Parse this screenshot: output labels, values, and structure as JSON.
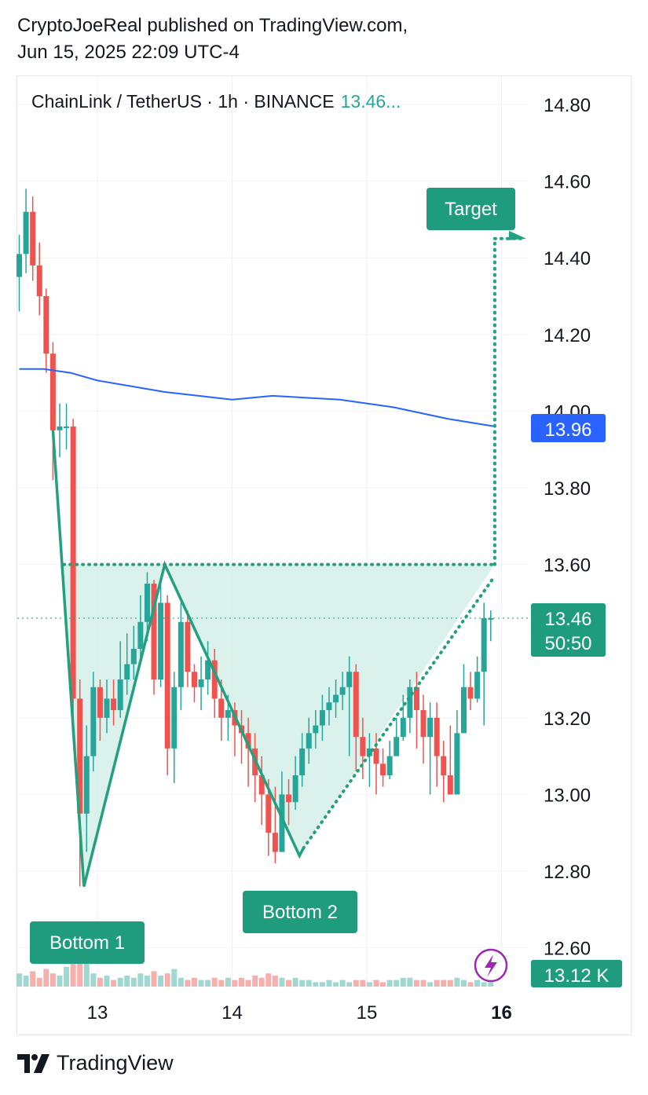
{
  "publisher": {
    "line1": "CryptoJoeReal published on TradingView.com,",
    "line2": "Jun 15, 2025 22:09 UTC-4"
  },
  "legend": {
    "symbol": "ChainLink / TetherUS · 1h · BINANCE",
    "price": "13.46..."
  },
  "footer": {
    "brand": "TradingView",
    "logo_icon": "tradingview-logo-icon"
  },
  "colors": {
    "up": "#26a69a",
    "down": "#ef5350",
    "ma": "#2962ff",
    "pattern": "#22a07f",
    "volume_up": "#9fd8d2",
    "volume_down": "#f5b0ae",
    "badge_blue": "#2962ff",
    "badge_green": "#1f9b7d"
  },
  "price_tags": {
    "ma": "13.96",
    "last_price": "13.46",
    "countdown": "50:50",
    "volume": "13.12 K"
  },
  "annotations": {
    "target": "Target",
    "bottom1": "Bottom 1",
    "bottom2": "Bottom 2"
  },
  "flash_icon": "lightning-bolt-icon",
  "chart_data": {
    "type": "candlestick",
    "symbol": "LINK/USDT",
    "timeframe": "1h",
    "exchange": "BINANCE",
    "x_ticks": [
      "13",
      "14",
      "15",
      "16"
    ],
    "x_ticks_values": [
      13,
      14,
      15,
      16
    ],
    "y_ticks": [
      "14.80",
      "14.60",
      "14.40",
      "14.20",
      "14.00",
      "13.80",
      "13.60",
      "13.20",
      "13.00",
      "12.80",
      "12.60"
    ],
    "y_ticks_values": [
      14.8,
      14.6,
      14.4,
      14.2,
      14.0,
      13.8,
      13.6,
      13.2,
      13.0,
      12.8,
      12.6
    ],
    "ylim": [
      12.6,
      14.8
    ],
    "xlim": [
      12.4,
      16.2
    ],
    "last_price": 13.46,
    "moving_average": {
      "x": [
        12.42,
        12.6,
        12.8,
        13.0,
        13.5,
        14.0,
        14.3,
        14.8,
        15.2,
        15.6,
        15.95
      ],
      "y": [
        14.11,
        14.11,
        14.1,
        14.08,
        14.05,
        14.03,
        14.04,
        14.03,
        14.01,
        13.98,
        13.96
      ]
    },
    "pattern": {
      "double_bottom_line": {
        "x": [
          12.67,
          12.9,
          13.5,
          14.5,
          14.53
        ],
        "y": [
          13.95,
          12.76,
          13.6,
          12.84,
          12.86
        ]
      },
      "neckline": 13.6,
      "neckline_from_x": 12.75,
      "neckline_to_x": 15.95,
      "target": 14.45,
      "target_x": 15.95,
      "breakout_x": 15.95,
      "support_trend": {
        "x": [
          14.53,
          15.95
        ],
        "y": [
          12.86,
          13.57
        ]
      }
    },
    "candles": {
      "x": [
        12.42,
        12.47,
        12.52,
        12.57,
        12.62,
        12.67,
        12.72,
        12.77,
        12.82,
        12.87,
        12.92,
        12.97,
        13.02,
        13.07,
        13.12,
        13.17,
        13.22,
        13.27,
        13.32,
        13.37,
        13.42,
        13.47,
        13.52,
        13.57,
        13.62,
        13.67,
        13.72,
        13.77,
        13.82,
        13.87,
        13.92,
        13.97,
        14.02,
        14.07,
        14.12,
        14.17,
        14.22,
        14.27,
        14.32,
        14.37,
        14.42,
        14.47,
        14.52,
        14.57,
        14.62,
        14.67,
        14.72,
        14.77,
        14.82,
        14.87,
        14.92,
        14.97,
        15.02,
        15.07,
        15.12,
        15.17,
        15.22,
        15.27,
        15.32,
        15.37,
        15.42,
        15.47,
        15.52,
        15.57,
        15.62,
        15.67,
        15.72,
        15.77,
        15.82,
        15.87,
        15.92
      ],
      "open": [
        14.35,
        14.41,
        14.52,
        14.38,
        14.3,
        14.15,
        13.95,
        13.96,
        13.96,
        13.25,
        12.95,
        13.1,
        13.28,
        13.2,
        13.25,
        13.22,
        13.3,
        13.34,
        13.38,
        13.45,
        13.55,
        13.3,
        13.5,
        13.12,
        13.28,
        13.45,
        13.32,
        13.28,
        13.3,
        13.35,
        13.25,
        13.2,
        13.22,
        13.18,
        13.16,
        13.12,
        13.05,
        13.0,
        12.9,
        12.85,
        13.0,
        12.98,
        13.05,
        13.12,
        13.16,
        13.18,
        13.22,
        13.24,
        13.26,
        13.28,
        13.32,
        13.15,
        13.1,
        13.12,
        13.08,
        13.05,
        13.1,
        13.15,
        13.2,
        13.28,
        13.22,
        13.15,
        13.2,
        13.1,
        13.05,
        13.0,
        13.16,
        13.28,
        13.25,
        13.32,
        13.46
      ],
      "close": [
        14.41,
        14.52,
        14.38,
        14.3,
        14.15,
        13.95,
        13.96,
        13.96,
        13.25,
        12.95,
        13.1,
        13.28,
        13.2,
        13.25,
        13.22,
        13.3,
        13.34,
        13.38,
        13.45,
        13.55,
        13.3,
        13.5,
        13.12,
        13.28,
        13.45,
        13.32,
        13.28,
        13.3,
        13.35,
        13.25,
        13.2,
        13.22,
        13.18,
        13.16,
        13.12,
        13.05,
        13.0,
        12.9,
        12.85,
        13.0,
        12.98,
        13.05,
        13.12,
        13.16,
        13.18,
        13.22,
        13.24,
        13.26,
        13.28,
        13.32,
        13.15,
        13.1,
        13.12,
        13.08,
        13.05,
        13.1,
        13.15,
        13.2,
        13.28,
        13.22,
        13.15,
        13.2,
        13.1,
        13.05,
        13.0,
        13.16,
        13.28,
        13.25,
        13.32,
        13.46,
        13.46
      ],
      "high": [
        14.46,
        14.58,
        14.56,
        14.44,
        14.32,
        14.18,
        14.02,
        14.02,
        13.98,
        13.3,
        13.18,
        13.32,
        13.3,
        13.3,
        13.3,
        13.4,
        13.42,
        13.44,
        13.52,
        13.58,
        13.56,
        13.56,
        13.52,
        13.32,
        13.5,
        13.48,
        13.34,
        13.36,
        13.4,
        13.38,
        13.3,
        13.26,
        13.24,
        13.22,
        13.2,
        13.16,
        13.1,
        13.04,
        13.02,
        13.06,
        13.04,
        13.1,
        13.16,
        13.2,
        13.22,
        13.26,
        13.28,
        13.3,
        13.32,
        13.36,
        13.34,
        13.2,
        13.16,
        13.16,
        13.12,
        13.14,
        13.2,
        13.26,
        13.3,
        13.32,
        13.26,
        13.24,
        13.24,
        13.14,
        13.18,
        13.22,
        13.34,
        13.32,
        13.36,
        13.5,
        13.48
      ],
      "low": [
        14.26,
        14.36,
        14.34,
        14.25,
        14.1,
        13.82,
        13.88,
        13.9,
        13.2,
        12.76,
        12.85,
        13.06,
        13.14,
        13.16,
        13.18,
        13.2,
        13.26,
        13.3,
        13.34,
        13.4,
        13.26,
        13.28,
        13.05,
        13.03,
        13.22,
        13.28,
        13.24,
        13.22,
        13.26,
        13.2,
        13.14,
        13.14,
        13.1,
        13.08,
        13.02,
        12.98,
        12.92,
        12.84,
        12.82,
        12.88,
        12.92,
        12.96,
        13.02,
        13.08,
        13.12,
        13.14,
        13.18,
        13.2,
        13.22,
        13.1,
        13.06,
        13.04,
        13.02,
        13.0,
        13.02,
        13.04,
        13.1,
        13.14,
        13.16,
        13.12,
        13.08,
        13.0,
        13.02,
        12.98,
        13.04,
        13.1,
        13.2,
        13.22,
        13.24,
        13.18,
        13.4
      ]
    },
    "volume": {
      "max": 13.12,
      "values": [
        0.6,
        0.5,
        0.7,
        0.4,
        0.8,
        0.6,
        0.5,
        0.9,
        2.5,
        2.0,
        1.2,
        0.6,
        0.4,
        0.5,
        0.3,
        0.4,
        0.5,
        0.4,
        0.6,
        0.5,
        0.7,
        0.5,
        0.6,
        0.8,
        0.4,
        0.3,
        0.4,
        0.3,
        0.3,
        0.4,
        0.3,
        0.4,
        0.3,
        0.4,
        0.3,
        0.5,
        0.4,
        0.6,
        0.5,
        0.4,
        0.3,
        0.4,
        0.3,
        0.3,
        0.2,
        0.2,
        0.3,
        0.2,
        0.3,
        0.2,
        0.3,
        0.3,
        0.2,
        0.3,
        0.2,
        0.3,
        0.3,
        0.4,
        0.4,
        0.3,
        0.3,
        0.2,
        0.3,
        0.3,
        0.3,
        0.4,
        0.3,
        0.2,
        0.3,
        0.2,
        0.2
      ]
    }
  }
}
